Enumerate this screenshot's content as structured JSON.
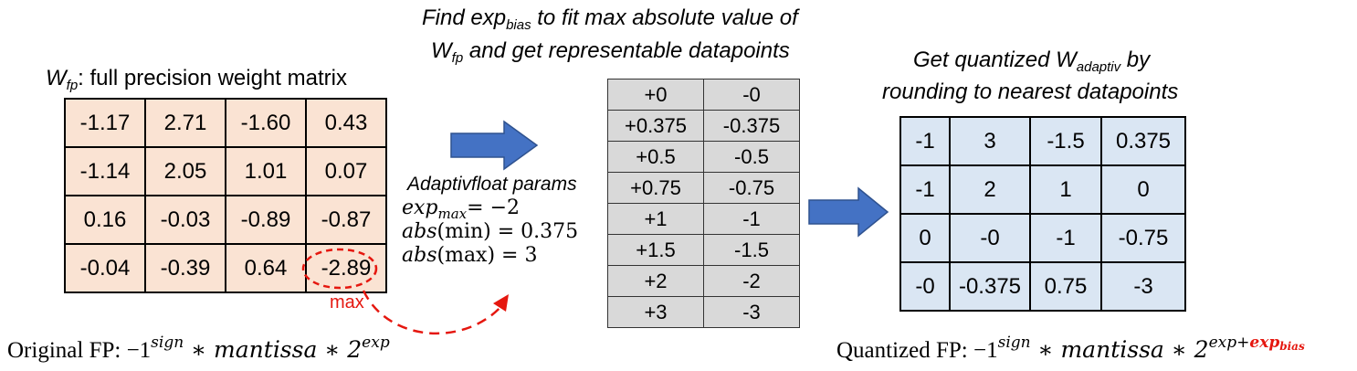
{
  "left": {
    "title_var": "W",
    "title_sub": "fp",
    "title_rest": ": full precision weight matrix",
    "matrix": [
      [
        "-1.17",
        "2.71",
        "-1.60",
        "0.43"
      ],
      [
        "-1.14",
        "2.05",
        "1.01",
        "0.07"
      ],
      [
        "0.16",
        "-0.03",
        "-0.89",
        "-0.87"
      ],
      [
        "-0.04",
        "-0.39",
        "0.64",
        "-2.89"
      ]
    ],
    "max_label": "max",
    "formula_prefix": "Original FP:  −1",
    "formula_sign": "sign",
    "formula_mid": " ∗ mantissa  ∗ 2",
    "formula_exp": "exp"
  },
  "middle": {
    "title_line1_a": "Find exp",
    "title_line1_sub": "bias",
    "title_line1_b": " to fit max absolute value of",
    "title_line2_var": "W",
    "title_line2_sub": "fp",
    "title_line2_b": " and get representable datapoints",
    "datapoints": [
      [
        "+0",
        "-0"
      ],
      [
        "+0.375",
        "-0.375"
      ],
      [
        "+0.5",
        "-0.5"
      ],
      [
        "+0.75",
        "-0.75"
      ],
      [
        "+1",
        "-1"
      ],
      [
        "+1.5",
        "-1.5"
      ],
      [
        "+2",
        "-2"
      ],
      [
        "+3",
        "-3"
      ]
    ],
    "params_title": "Adaptivfloat params",
    "param_exp_var": "exp",
    "param_exp_sub": "max",
    "param_exp_val": "= −2",
    "param_min_fn": "abs",
    "param_min_arg": "(min) = 0.375",
    "param_max_fn": "abs",
    "param_max_arg": "(max) = 3"
  },
  "right": {
    "title_line1_a": "Get quantized W",
    "title_line1_sub": "adaptiv",
    "title_line1_b": " by",
    "title_line2": "rounding to nearest datapoints",
    "matrix": [
      [
        "-1",
        "3",
        "-1.5",
        "0.375"
      ],
      [
        "-1",
        "2",
        "1",
        "0"
      ],
      [
        "0",
        "-0",
        "-1",
        "-0.75"
      ],
      [
        "-0",
        "-0.375",
        "0.75",
        "-3"
      ]
    ],
    "formula_prefix": "Quantized FP:  −1",
    "formula_sign": "sign",
    "formula_mid": " ∗ mantissa  ∗ 2",
    "formula_exp": "exp+",
    "formula_exp_bias": "exp",
    "formula_exp_bias_sub": "bias"
  },
  "colors": {
    "matrix_fill": "#fae3d3",
    "datapoint_fill": "#d9d9d9",
    "quantized_fill": "#dae6f3",
    "arrow_fill": "#4472c4",
    "highlight": "#e5170f"
  },
  "icons": [
    "right-arrow-icon",
    "right-arrow-icon",
    "dashed-curved-arrow-icon",
    "dashed-ellipse-highlight"
  ]
}
